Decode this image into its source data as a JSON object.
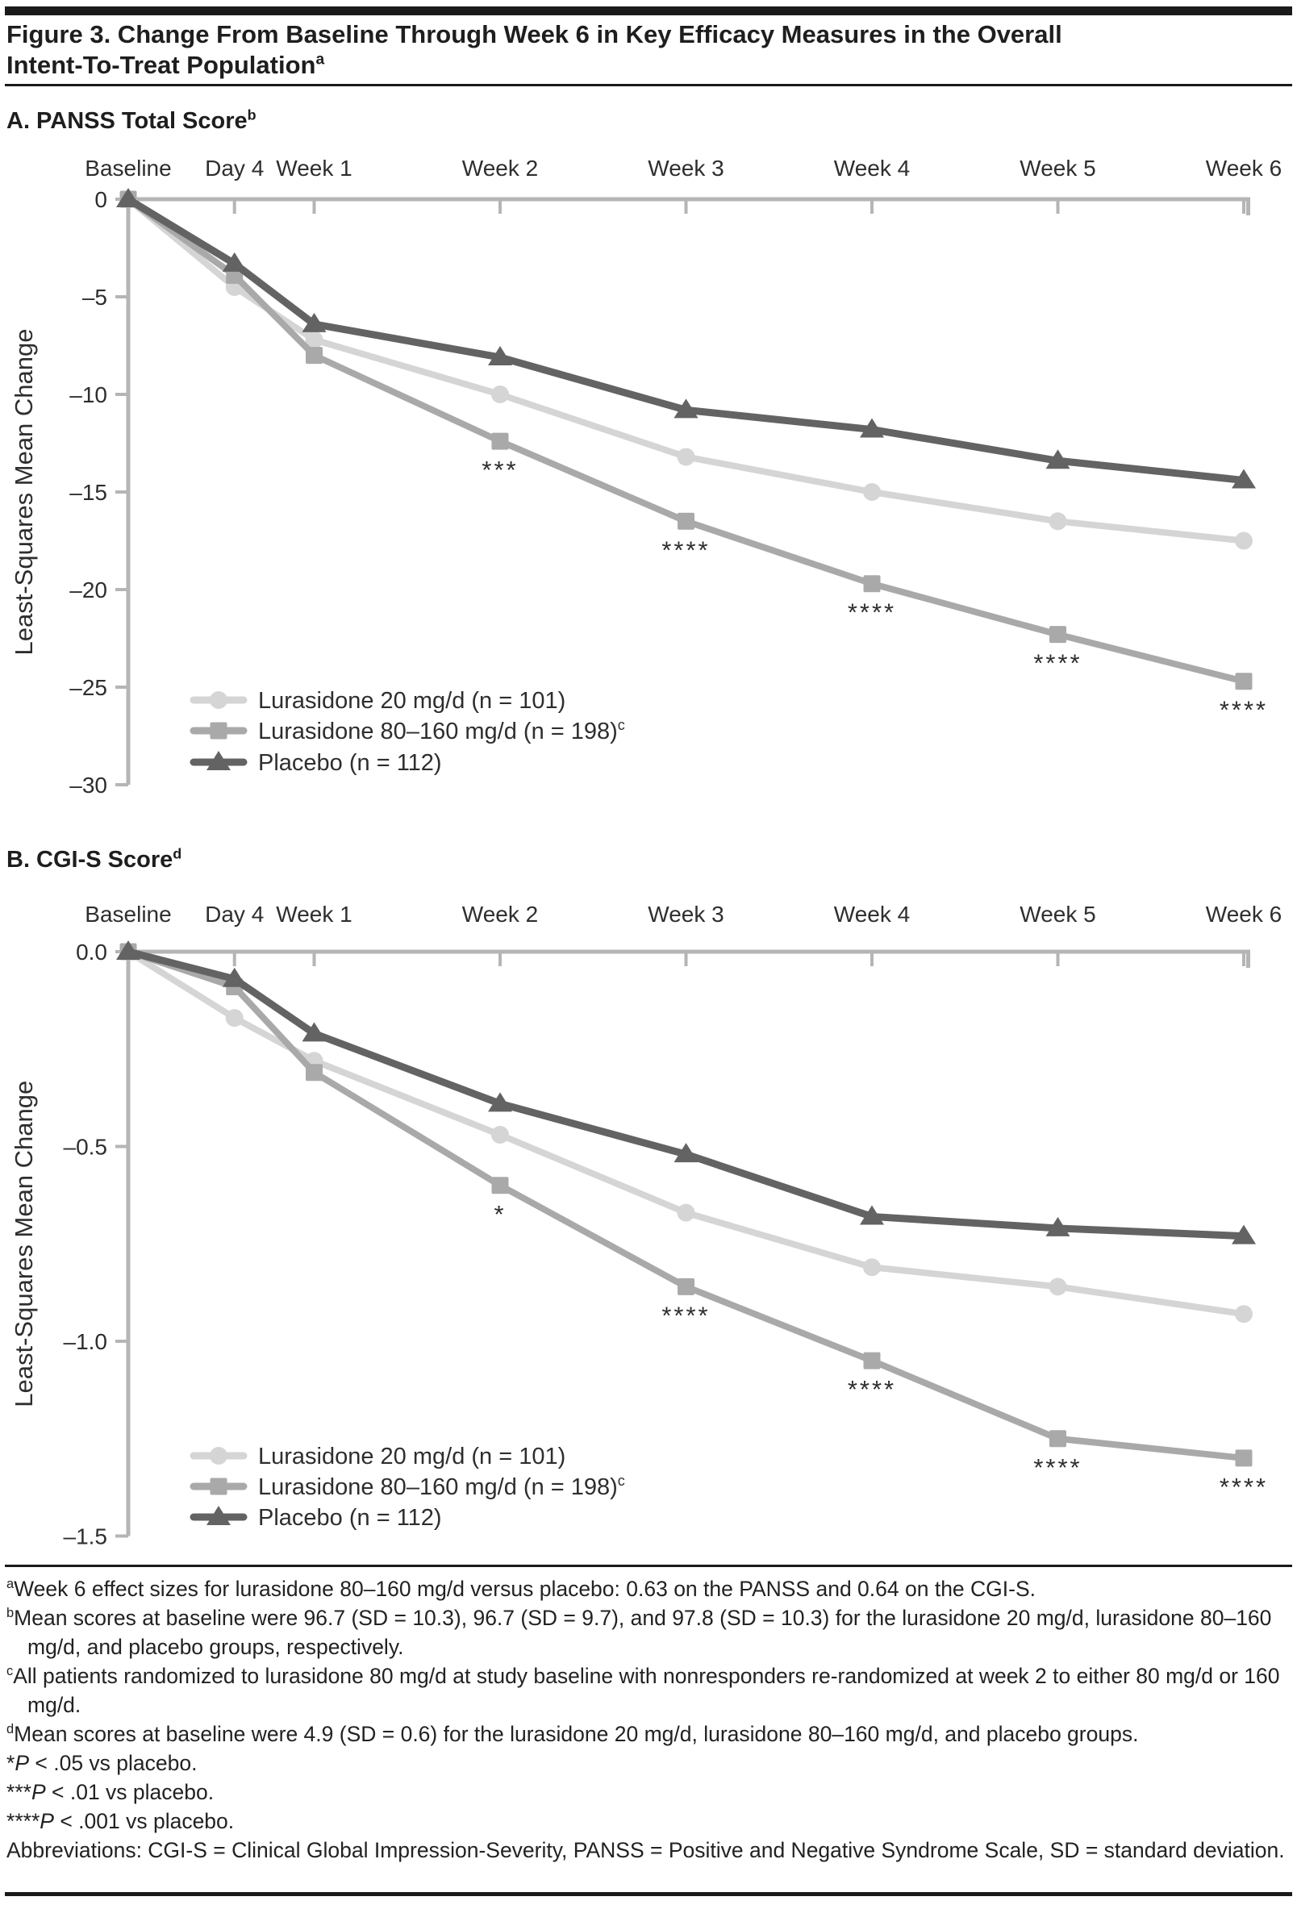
{
  "header": {
    "title_line1": "Figure 3. Change From Baseline Through Week 6 in Key Efficacy Measures in the Overall",
    "title_line2": "Intent-To-Treat Population",
    "title_sup": "a"
  },
  "colors": {
    "lurasidone20": "#d5d5d5",
    "lurasidone80_160": "#a9a9a9",
    "placebo": "#636363",
    "axis": "#b5b5b5",
    "text": "#2e2e2e",
    "rule": "#1a1a1a"
  },
  "chart_data": [
    {
      "type": "line",
      "panel_label": "A. PANSS Total Score",
      "panel_sup": "b",
      "ylabel": "Least-Squares Mean Change",
      "categories": [
        "Baseline",
        "Day 4",
        "Week 1",
        "Week 2",
        "Week 3",
        "Week 4",
        "Week 5",
        "Week 6"
      ],
      "x_days": [
        0,
        4,
        7,
        14,
        21,
        28,
        35,
        42
      ],
      "ylim": [
        -30,
        0
      ],
      "yticks": [
        0,
        -5,
        -10,
        -15,
        -20,
        -25,
        -30
      ],
      "ytick_labels": [
        "0",
        "–5",
        "–10",
        "–15",
        "–20",
        "–25",
        "–30"
      ],
      "grid": false,
      "legend_position": "inside-bottom-left",
      "series": [
        {
          "name": "Lurasidone 20 mg/d (n = 101)",
          "marker": "circle",
          "color": "#d5d5d5",
          "values": [
            0,
            -4.5,
            -7.2,
            -10.0,
            -13.2,
            -15.0,
            -16.5,
            -17.5
          ],
          "stars": [
            "",
            "",
            "",
            "",
            "",
            "",
            "",
            ""
          ]
        },
        {
          "name": "Lurasidone 80–160 mg/d (n = 198)",
          "name_sup": "c",
          "marker": "square",
          "color": "#a9a9a9",
          "values": [
            0,
            -3.9,
            -8.0,
            -12.4,
            -16.5,
            -19.7,
            -22.3,
            -24.7
          ],
          "stars": [
            "",
            "",
            "",
            "***",
            "****",
            "****",
            "****",
            "****"
          ]
        },
        {
          "name": "Placebo (n = 112)",
          "marker": "triangle",
          "color": "#636363",
          "values": [
            0,
            -3.3,
            -6.4,
            -8.1,
            -10.8,
            -11.8,
            -13.4,
            -14.4
          ],
          "stars": [
            "",
            "",
            "",
            "",
            "",
            "",
            "",
            ""
          ]
        }
      ]
    },
    {
      "type": "line",
      "panel_label": "B. CGI-S Score",
      "panel_sup": "d",
      "ylabel": "Least-Squares Mean Change",
      "categories": [
        "Baseline",
        "Day 4",
        "Week 1",
        "Week 2",
        "Week 3",
        "Week 4",
        "Week 5",
        "Week 6"
      ],
      "x_days": [
        0,
        4,
        7,
        14,
        21,
        28,
        35,
        42
      ],
      "ylim": [
        -1.5,
        0
      ],
      "yticks": [
        0,
        -0.5,
        -1.0,
        -1.5
      ],
      "ytick_labels": [
        "0.0",
        "–0.5",
        "–1.0",
        "–1.5"
      ],
      "grid": false,
      "legend_position": "inside-bottom-left",
      "series": [
        {
          "name": "Lurasidone 20 mg/d (n = 101)",
          "marker": "circle",
          "color": "#d5d5d5",
          "values": [
            0,
            -0.17,
            -0.28,
            -0.47,
            -0.67,
            -0.81,
            -0.86,
            -0.93
          ],
          "stars": [
            "",
            "",
            "",
            "",
            "",
            "",
            "",
            ""
          ]
        },
        {
          "name": "Lurasidone 80–160 mg/d (n = 198)",
          "name_sup": "c",
          "marker": "square",
          "color": "#a9a9a9",
          "values": [
            0,
            -0.09,
            -0.31,
            -0.6,
            -0.86,
            -1.05,
            -1.25,
            -1.3
          ],
          "stars": [
            "",
            "",
            "",
            "*",
            "****",
            "****",
            "****",
            "****"
          ]
        },
        {
          "name": "Placebo (n = 112)",
          "marker": "triangle",
          "color": "#636363",
          "values": [
            0,
            -0.07,
            -0.21,
            -0.39,
            -0.52,
            -0.68,
            -0.71,
            -0.73
          ],
          "stars": [
            "",
            "",
            "",
            "",
            "",
            "",
            "",
            ""
          ]
        }
      ]
    }
  ],
  "footnotes": [
    {
      "sup": "a",
      "text": "Week 6 effect sizes for lurasidone 80–160 mg/d versus placebo: 0.63 on the PANSS and 0.64 on the CGI-S."
    },
    {
      "sup": "b",
      "text": "Mean scores at baseline were 96.7 (SD = 10.3), 96.7 (SD = 9.7), and 97.8 (SD = 10.3) for the lurasidone 20 mg/d, lurasidone 80–160 mg/d, and placebo groups, respectively."
    },
    {
      "sup": "c",
      "text": "All patients randomized to lurasidone 80 mg/d at study baseline with nonresponders re-randomized at week 2 to either 80 mg/d or 160 mg/d."
    },
    {
      "sup": "d",
      "text": "Mean scores at baseline were 4.9 (SD = 0.6) for the lurasidone 20 mg/d, lurasidone 80–160 mg/d, and placebo groups."
    },
    {
      "stars": "*",
      "p": "P",
      "text": " < .05 vs placebo."
    },
    {
      "stars": "***",
      "p": "P",
      "text": " < .01 vs placebo."
    },
    {
      "stars": "****",
      "p": "P",
      "text": " < .001 vs placebo."
    },
    {
      "text": "Abbreviations: CGI-S = Clinical Global Impression-Severity, PANSS = Positive and Negative Syndrome Scale, SD = standard deviation."
    }
  ]
}
